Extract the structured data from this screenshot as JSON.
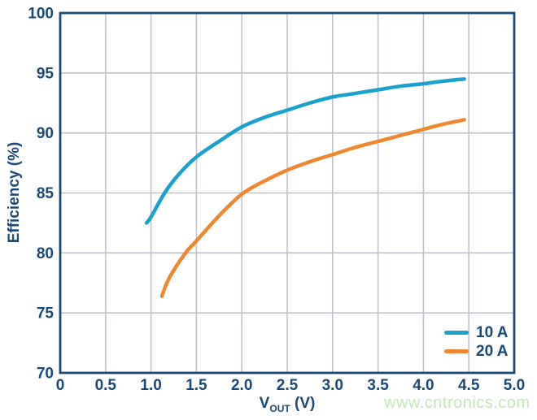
{
  "chart_data": {
    "type": "line",
    "title": "",
    "xlabel_main": "V",
    "xlabel_sub": "OUT",
    "xlabel_unit": " (V)",
    "ylabel": "Efficiency (%)",
    "xlim": [
      0,
      5.0
    ],
    "ylim": [
      70,
      100
    ],
    "x_ticks": [
      "0",
      "0.5",
      "1.0",
      "1.5",
      "2.0",
      "2.5",
      "3.0",
      "3.5",
      "4.0",
      "4.5",
      "5.0"
    ],
    "y_ticks": [
      "70",
      "75",
      "80",
      "85",
      "90",
      "95",
      "100"
    ],
    "grid": true,
    "legend_position": "inside-bottom-right",
    "series": [
      {
        "name": "10 A",
        "color": "#1BA1CD",
        "points": [
          [
            0.95,
            82.5
          ],
          [
            1.0,
            83.0
          ],
          [
            1.15,
            85.0
          ],
          [
            1.3,
            86.5
          ],
          [
            1.5,
            88.0
          ],
          [
            1.75,
            89.3
          ],
          [
            2.0,
            90.5
          ],
          [
            2.25,
            91.3
          ],
          [
            2.5,
            91.9
          ],
          [
            2.75,
            92.5
          ],
          [
            3.0,
            93.0
          ],
          [
            3.25,
            93.3
          ],
          [
            3.5,
            93.6
          ],
          [
            3.75,
            93.9
          ],
          [
            4.0,
            94.1
          ],
          [
            4.2,
            94.3
          ],
          [
            4.45,
            94.5
          ]
        ]
      },
      {
        "name": "20 A",
        "color": "#F0872E",
        "points": [
          [
            1.12,
            76.4
          ],
          [
            1.2,
            77.9
          ],
          [
            1.38,
            80.0
          ],
          [
            1.5,
            81.0
          ],
          [
            1.75,
            83.1
          ],
          [
            2.0,
            84.9
          ],
          [
            2.25,
            86.0
          ],
          [
            2.5,
            86.9
          ],
          [
            2.75,
            87.6
          ],
          [
            3.0,
            88.2
          ],
          [
            3.25,
            88.8
          ],
          [
            3.5,
            89.3
          ],
          [
            3.75,
            89.8
          ],
          [
            4.0,
            90.3
          ],
          [
            4.2,
            90.7
          ],
          [
            4.45,
            91.1
          ]
        ]
      }
    ]
  },
  "watermark": {
    "text": "www.cntronics.com",
    "color": "#C6E7B8"
  },
  "colors": {
    "axis_text": "#1B4977",
    "border": "#1B4977",
    "grid": "#BFC3CD",
    "background": "#FFFFFF"
  }
}
